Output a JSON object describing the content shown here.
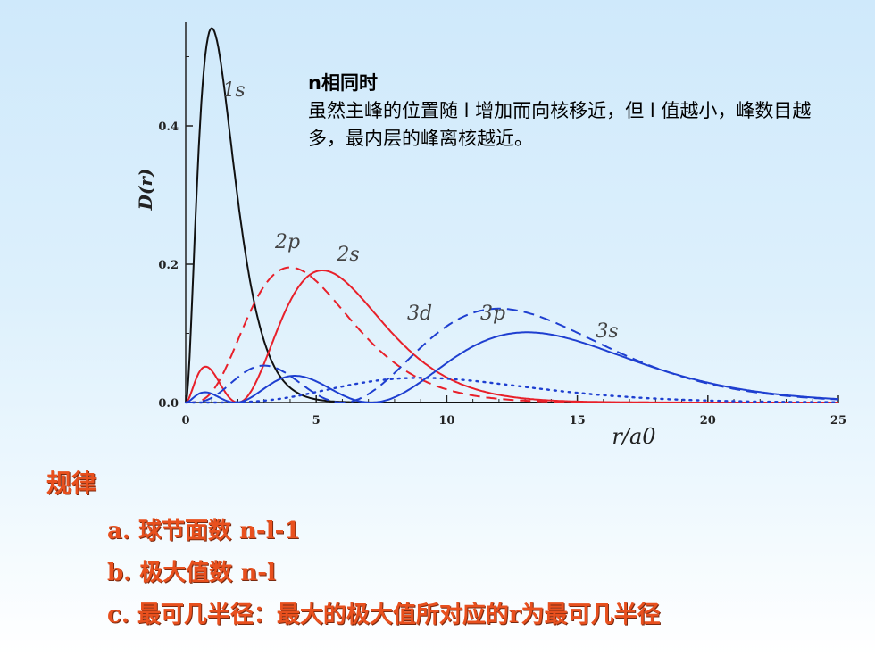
{
  "note": {
    "line1": "n相同时",
    "line2": "虽然主峰的位置随 l 增加而向核移近，但 l 值越小，峰数目越多，最内层的峰离核越近。"
  },
  "rules": {
    "title": "规律",
    "items": [
      "a. 球节面数 n-l-1",
      "b. 极大值数 n-l",
      "c. 最可几半径：最大的极大值所对应的r为最可几半径"
    ]
  },
  "chart_data": {
    "type": "line",
    "xlabel": "r/a0",
    "ylabel": "D(r)",
    "xlim": [
      0,
      25
    ],
    "ylim": [
      0,
      0.55
    ],
    "xticks": [
      0,
      5,
      10,
      15,
      20,
      25
    ],
    "yticks": [
      "0.0",
      "0.2",
      "0.4"
    ],
    "ytick_values": [
      0,
      0.2,
      0.4
    ],
    "series": [
      {
        "name": "1s",
        "color": "#111111",
        "dash": "solid"
      },
      {
        "name": "2s",
        "color": "#e8202a",
        "dash": "solid"
      },
      {
        "name": "2p",
        "color": "#e8202a",
        "dash": "dashed"
      },
      {
        "name": "3s",
        "color": "#1e3fd0",
        "dash": "solid"
      },
      {
        "name": "3p",
        "color": "#1e3fd0",
        "dash": "dashed"
      },
      {
        "name": "3d",
        "color": "#1e3fd0",
        "dash": "dotted"
      }
    ]
  }
}
